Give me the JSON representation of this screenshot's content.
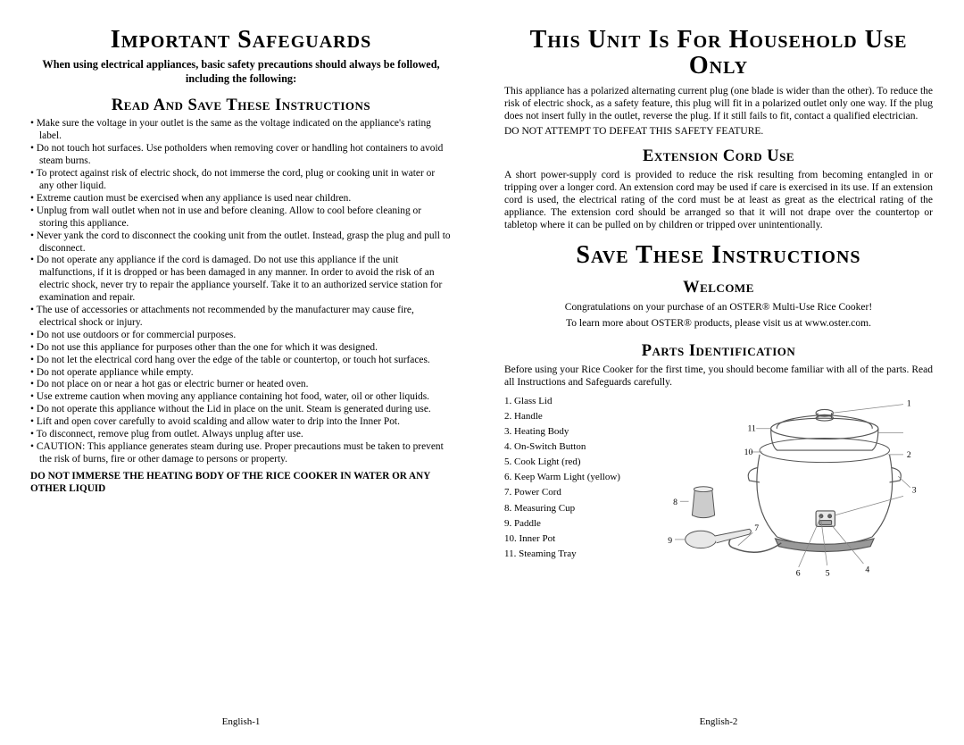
{
  "left": {
    "title": "Important Safeguards",
    "intro": "When using electrical appliances, basic safety precautions should always be followed, including the following:",
    "subhead": "Read And Save These Instructions",
    "bullets": [
      "Make sure the voltage in your outlet is the same as the voltage indicated on the appliance's rating label.",
      "Do not touch hot surfaces. Use potholders when removing cover or handling hot containers to avoid steam burns.",
      "To protect against risk of electric shock, do not immerse the cord, plug or cooking unit in water or any other liquid.",
      "Extreme caution must be exercised when any appliance is used near children.",
      "Unplug from wall outlet when not in use and before cleaning. Allow to cool before cleaning or storing this appliance.",
      "Never yank the cord to disconnect the cooking unit from the outlet. Instead, grasp the plug and pull to disconnect.",
      "Do not operate any appliance if the cord is damaged. Do not use this appliance if the unit malfunctions, if it is dropped or has been damaged in any manner. In order to avoid the risk of an electric shock, never try to repair the appliance yourself. Take it to an authorized service station for examination and repair.",
      "The use of accessories or attachments not recommended by the manufacturer may cause fire, electrical shock or injury.",
      "Do not use outdoors or for commercial purposes.",
      "Do not use this appliance for purposes other than the one for which it was designed.",
      "Do not let the electrical cord hang over the edge of the table or countertop, or touch hot surfaces.",
      "Do not operate appliance while empty.",
      "Do not place on or near a hot gas or electric burner or heated oven.",
      "Use extreme caution when moving any appliance containing hot food, water, oil or other liquids.",
      "Do not operate this appliance without the Lid in place on the unit. Steam is generated during use.",
      "Lift and open cover carefully to avoid scalding and allow water to drip into the Inner Pot.",
      "To disconnect, remove plug from outlet. Always unplug after use.",
      "CAUTION: This appliance generates steam during use. Proper precautions must be taken to prevent the risk of burns, fire or other damage to persons or property."
    ],
    "doNot": "DO NOT IMMERSE THE HEATING BODY OF THE RICE COOKER IN WATER OR ANY OTHER LIQUID",
    "footer": "English-1"
  },
  "right": {
    "title1": "This Unit Is For Household Use Only",
    "plugText": "This appliance has a polarized alternating current plug (one blade is wider than the other). To reduce the risk of electric shock, as a safety feature, this plug will fit in a polarized outlet only one way. If the plug does not insert fully in the outlet, reverse the plug. If it still fails to fit, contact a qualified electrician.",
    "plugWarn": "DO NOT ATTEMPT TO DEFEAT THIS SAFETY FEATURE.",
    "extHead": "Extension Cord Use",
    "extText": "A short power-supply cord is provided to reduce the risk resulting from becoming entangled in or tripping over a longer cord. An extension cord may be used if care is exercised in its use. If an extension cord is used, the electrical rating of the cord must be at least as great as the electrical rating of the appliance. The extension cord should be arranged so that it will not drape over the countertop or tabletop where it can be pulled on by children or tripped over unintentionally.",
    "title2": "Save These Instructions",
    "welcomeHead": "Welcome",
    "welcome1": "Congratulations on your purchase of an OSTER® Multi-Use Rice Cooker!",
    "welcome2": "To learn more about OSTER® products, please visit us at www.oster.com.",
    "partsHead": "Parts Identification",
    "partsIntro": "Before using your Rice Cooker for the first time, you should become familiar with all of the parts. Read all Instructions and Safeguards carefully.",
    "parts": [
      "1. Glass Lid",
      "2. Handle",
      "3. Heating Body",
      "4. On-Switch Button",
      "5. Cook Light (red)",
      "6. Keep Warm Light (yellow)",
      "7. Power Cord",
      "8. Measuring Cup",
      "9. Paddle",
      "10. Inner Pot",
      "11. Steaming Tray"
    ],
    "footer": "English-2"
  },
  "diagram": {
    "labels": [
      "1",
      "2",
      "3",
      "4",
      "5",
      "6",
      "7",
      "8",
      "9",
      "10",
      "11"
    ],
    "stroke": "#555555",
    "leaderStroke": "#888888",
    "cupFill": "#cccccc",
    "fontSize": 10
  }
}
